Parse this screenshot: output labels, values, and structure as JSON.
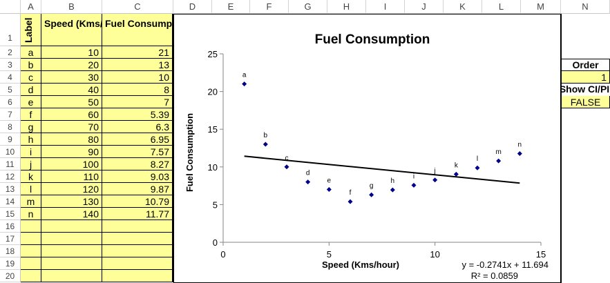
{
  "columns": [
    "A",
    "B",
    "C",
    "D",
    "E",
    "F",
    "G",
    "H",
    "I",
    "J",
    "K",
    "L",
    "M",
    "N"
  ],
  "rows": [
    "1",
    "2",
    "3",
    "4",
    "5",
    "6",
    "7",
    "8",
    "9",
    "10",
    "11",
    "12",
    "13",
    "14",
    "15",
    "16",
    "17",
    "18",
    "19",
    "20"
  ],
  "table": {
    "headers": {
      "label": "Label",
      "speed": "Speed (Kms/hour)",
      "fuel": "Fuel Consumption"
    },
    "data": [
      [
        "a",
        "10",
        "21"
      ],
      [
        "b",
        "20",
        "13"
      ],
      [
        "c",
        "30",
        "10"
      ],
      [
        "d",
        "40",
        "8"
      ],
      [
        "e",
        "50",
        "7"
      ],
      [
        "f",
        "60",
        "5.39"
      ],
      [
        "g",
        "70",
        "6.3"
      ],
      [
        "h",
        "80",
        "6.95"
      ],
      [
        "i",
        "90",
        "7.57"
      ],
      [
        "j",
        "100",
        "8.27"
      ],
      [
        "k",
        "110",
        "9.03"
      ],
      [
        "l",
        "120",
        "9.87"
      ],
      [
        "m",
        "130",
        "10.79"
      ],
      [
        "n",
        "140",
        "11.77"
      ]
    ]
  },
  "controls": {
    "order_label": "Order",
    "order_value": "1",
    "show_label": "Show CI/PI",
    "show_value": "FALSE"
  },
  "chart_data": {
    "type": "scatter",
    "title": "Fuel Consumption",
    "xlabel": "Speed (Kms/hour)",
    "ylabel": "Fuel Consumption",
    "xlim": [
      0,
      15
    ],
    "ylim": [
      0,
      25
    ],
    "xticks": [
      "0",
      "5",
      "10",
      "15"
    ],
    "yticks": [
      "0",
      "5",
      "10",
      "15",
      "20",
      "25"
    ],
    "grid": false,
    "marker_color": "#00008b",
    "points": [
      {
        "x": 1,
        "y": 21,
        "label": "a"
      },
      {
        "x": 2,
        "y": 13,
        "label": "b"
      },
      {
        "x": 3,
        "y": 10,
        "label": "c"
      },
      {
        "x": 4,
        "y": 8,
        "label": "d"
      },
      {
        "x": 5,
        "y": 7,
        "label": "e"
      },
      {
        "x": 6,
        "y": 5.39,
        "label": "f"
      },
      {
        "x": 7,
        "y": 6.3,
        "label": "g"
      },
      {
        "x": 8,
        "y": 6.95,
        "label": "h"
      },
      {
        "x": 9,
        "y": 7.57,
        "label": "i"
      },
      {
        "x": 10,
        "y": 8.27,
        "label": "j"
      },
      {
        "x": 11,
        "y": 9.03,
        "label": "k"
      },
      {
        "x": 12,
        "y": 9.87,
        "label": "l"
      },
      {
        "x": 13,
        "y": 10.79,
        "label": "m"
      },
      {
        "x": 14,
        "y": 11.77,
        "label": "n"
      }
    ],
    "trendline": {
      "slope": -0.2741,
      "intercept": 11.694,
      "x_range": [
        1,
        14
      ],
      "equation": "y = -0.2741x + 11.694",
      "r2": "R² = 0.0859"
    }
  }
}
